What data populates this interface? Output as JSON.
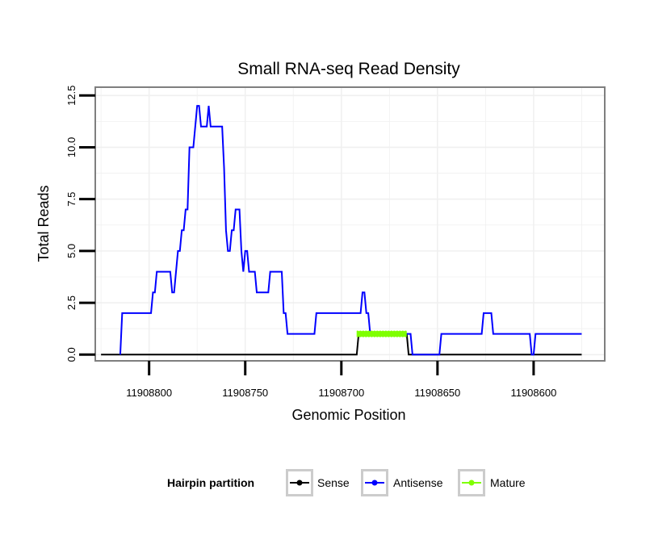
{
  "chart_data": {
    "type": "line",
    "title": "Small RNA-seq Read Density",
    "xlabel": "Genomic Position",
    "ylabel": "Total Reads",
    "xlim": [
      11908828,
      11908563
    ],
    "ylim": [
      -0.3,
      12.9
    ],
    "x_reversed": true,
    "x_ticks": [
      11908800,
      11908750,
      11908700,
      11908650,
      11908600
    ],
    "x_tick_labels": [
      "11908800",
      "11908750",
      "11908700",
      "11908650",
      "11908600"
    ],
    "y_ticks": [
      0,
      2.5,
      5,
      7.5,
      10,
      12.5
    ],
    "y_tick_labels": [
      "0.0",
      "2.5",
      "5.0",
      "7.5",
      "10.0",
      "12.5"
    ],
    "grid": true,
    "legend": {
      "title": "Hairpin partition",
      "position": "bottom",
      "entries": [
        "Sense",
        "Antisense",
        "Mature"
      ]
    },
    "series": [
      {
        "name": "Sense",
        "color": "#000000",
        "points": [
          [
            11908825,
            0
          ],
          [
            11908692,
            0
          ],
          [
            11908691,
            1
          ],
          [
            11908666,
            1
          ],
          [
            11908665,
            0
          ],
          [
            11908575,
            0
          ]
        ]
      },
      {
        "name": "Antisense",
        "color": "#0000ff",
        "points": [
          [
            11908815,
            0
          ],
          [
            11908814,
            2
          ],
          [
            11908799,
            2
          ],
          [
            11908798,
            3
          ],
          [
            11908797,
            3
          ],
          [
            11908796,
            4
          ],
          [
            11908789,
            4
          ],
          [
            11908788,
            3
          ],
          [
            11908787,
            3
          ],
          [
            11908785,
            5
          ],
          [
            11908784,
            5
          ],
          [
            11908783,
            6
          ],
          [
            11908782,
            6
          ],
          [
            11908781,
            7
          ],
          [
            11908780,
            7
          ],
          [
            11908779,
            10
          ],
          [
            11908777,
            10
          ],
          [
            11908775,
            12
          ],
          [
            11908774,
            12
          ],
          [
            11908773,
            11
          ],
          [
            11908770,
            11
          ],
          [
            11908769,
            12
          ],
          [
            11908768,
            11
          ],
          [
            11908762,
            11
          ],
          [
            11908761,
            9
          ],
          [
            11908760,
            6
          ],
          [
            11908759,
            5
          ],
          [
            11908758,
            5
          ],
          [
            11908757,
            6
          ],
          [
            11908756,
            6
          ],
          [
            11908755,
            7
          ],
          [
            11908753,
            7
          ],
          [
            11908752,
            5
          ],
          [
            11908751,
            4
          ],
          [
            11908750,
            5
          ],
          [
            11908749,
            5
          ],
          [
            11908748,
            4
          ],
          [
            11908745,
            4
          ],
          [
            11908744,
            3
          ],
          [
            11908738,
            3
          ],
          [
            11908737,
            4
          ],
          [
            11908731,
            4
          ],
          [
            11908730,
            2
          ],
          [
            11908729,
            2
          ],
          [
            11908728,
            1
          ],
          [
            11908714,
            1
          ],
          [
            11908713,
            2
          ],
          [
            11908690,
            2
          ],
          [
            11908689,
            3
          ],
          [
            11908688,
            3
          ],
          [
            11908687,
            2
          ],
          [
            11908686,
            2
          ],
          [
            11908685,
            1
          ],
          [
            11908664,
            1
          ],
          [
            11908663,
            0
          ],
          [
            11908649,
            0
          ],
          [
            11908648,
            1
          ],
          [
            11908627,
            1
          ],
          [
            11908626,
            2
          ],
          [
            11908622,
            2
          ],
          [
            11908621,
            1
          ],
          [
            11908602,
            1
          ],
          [
            11908601,
            0
          ],
          [
            11908600,
            0
          ],
          [
            11908599,
            1
          ],
          [
            11908575,
            1
          ]
        ]
      },
      {
        "name": "Mature",
        "color": "#7fff00",
        "points": [
          [
            11908692,
            1
          ],
          [
            11908666,
            1
          ]
        ]
      }
    ]
  }
}
